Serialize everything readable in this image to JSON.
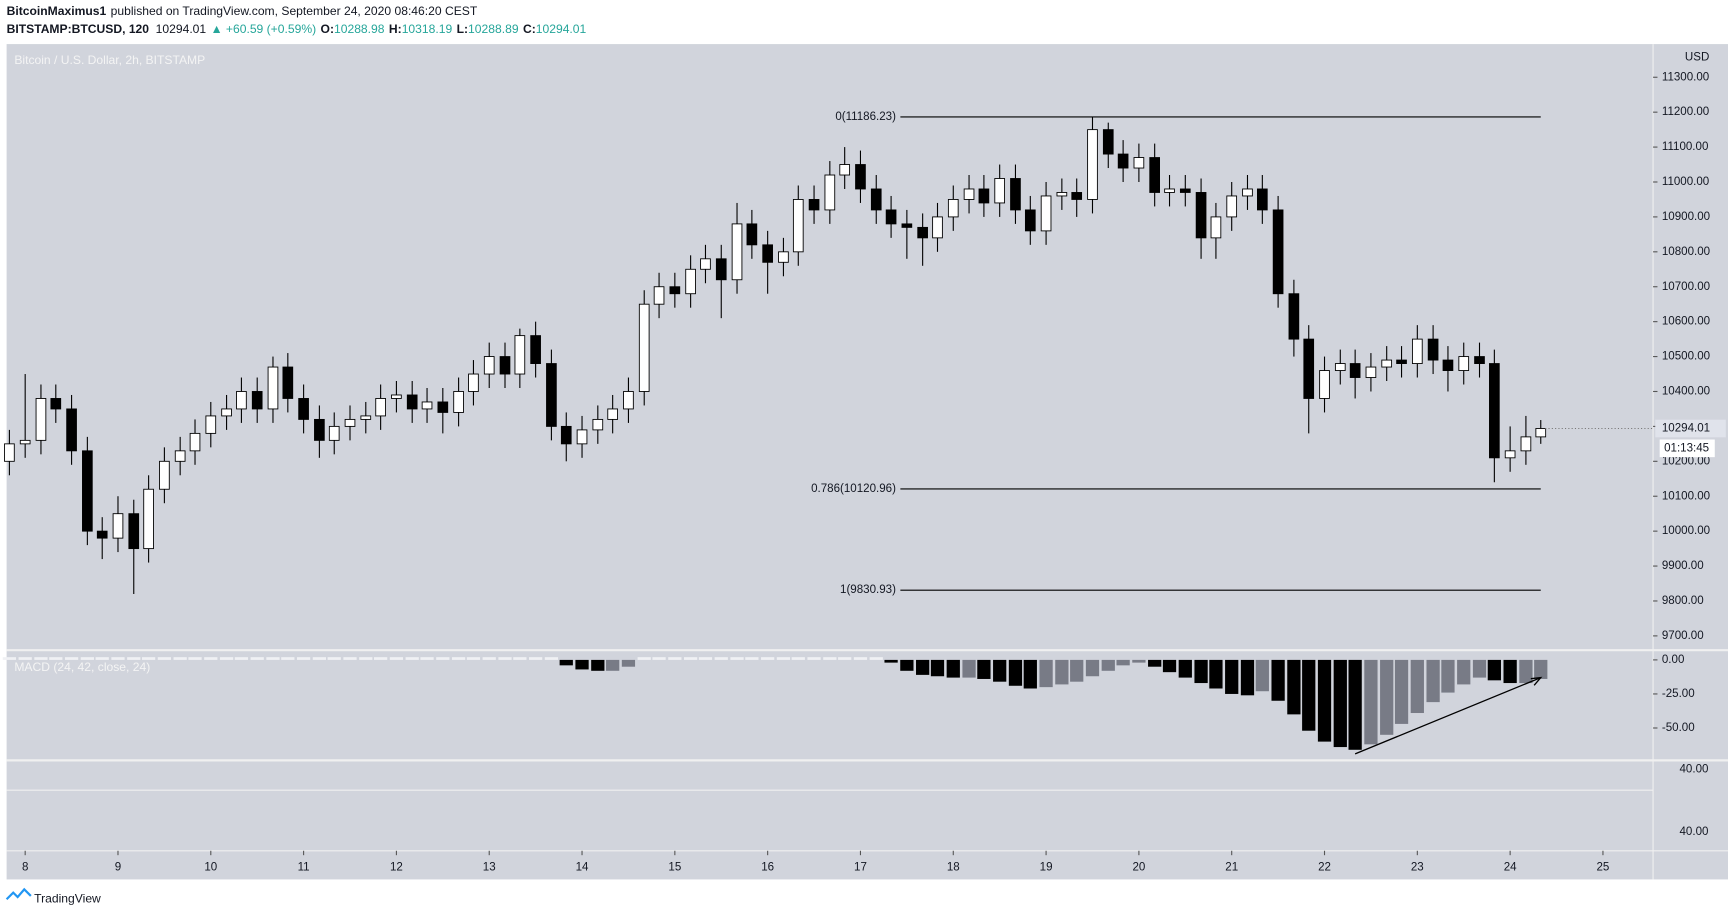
{
  "header": {
    "publisher": "BitcoinMaximus1",
    "published": "published on TradingView.com, September 24, 2020 08:46:20 CEST",
    "symbol": "BITSTAMP:BTCUSD, 120",
    "last": "10294.01",
    "change": "▲ +60.59 (+0.59%)",
    "o_label": "O:",
    "o": "10288.98",
    "h_label": "H:",
    "h": "10318.19",
    "l_label": "L:",
    "l": "10288.89",
    "c_label": "C:",
    "c": "10294.01"
  },
  "footer": {
    "brand": "TradingView"
  },
  "chart_data": {
    "type": "candlestick",
    "title": "Bitcoin / U.S. Dollar, 2h, BITSTAMP",
    "y_axis_label": "USD",
    "up_color": "#ffffff",
    "down_color": "#000000",
    "x": [
      7.83,
      8,
      8.17,
      8.33,
      8.5,
      8.67,
      8.83,
      9,
      9.17,
      9.33,
      9.5,
      9.67,
      9.83,
      10,
      10.17,
      10.33,
      10.5,
      10.67,
      10.83,
      11,
      11.17,
      11.33,
      11.5,
      11.67,
      11.83,
      12,
      12.17,
      12.33,
      12.5,
      12.67,
      12.83,
      13,
      13.17,
      13.33,
      13.5,
      13.67,
      13.83,
      14,
      14.17,
      14.33,
      14.5,
      14.67,
      14.83,
      15,
      15.17,
      15.33,
      15.5,
      15.67,
      15.83,
      16,
      16.17,
      16.33,
      16.5,
      16.67,
      16.83,
      17,
      17.17,
      17.33,
      17.5,
      17.67,
      17.83,
      18,
      18.17,
      18.33,
      18.5,
      18.67,
      18.83,
      19,
      19.17,
      19.33,
      19.5,
      19.67,
      19.83,
      20,
      20.17,
      20.33,
      20.5,
      20.67,
      20.83,
      21,
      21.17,
      21.33,
      21.5,
      21.67,
      21.83,
      22,
      22.17,
      22.33,
      22.5,
      22.67,
      22.83,
      23,
      23.17,
      23.33,
      23.5,
      23.67,
      23.83,
      24,
      24.17,
      24.33
    ],
    "open": [
      10200,
      10250,
      10260,
      10380,
      10350,
      10230,
      10000,
      9980,
      10050,
      9950,
      10120,
      10200,
      10230,
      10280,
      10330,
      10350,
      10400,
      10350,
      10470,
      10380,
      10320,
      10260,
      10300,
      10320,
      10330,
      10380,
      10390,
      10350,
      10370,
      10340,
      10400,
      10450,
      10500,
      10450,
      10560,
      10480,
      10300,
      10250,
      10290,
      10320,
      10350,
      10400,
      10650,
      10700,
      10680,
      10750,
      10780,
      10720,
      10880,
      10820,
      10770,
      10800,
      10950,
      10920,
      11020,
      11050,
      10980,
      10920,
      10880,
      10870,
      10840,
      10900,
      10950,
      10980,
      10940,
      11010,
      10920,
      10860,
      10960,
      10970,
      10950,
      11150,
      11080,
      11040,
      11070,
      10970,
      10980,
      10970,
      10840,
      10900,
      10960,
      10980,
      10920,
      10680,
      10550,
      10380,
      10460,
      10480,
      10440,
      10470,
      10490,
      10480,
      10550,
      10490,
      10460,
      10500,
      10480,
      10210,
      10230,
      10270
    ],
    "high": [
      10290,
      10450,
      10420,
      10420,
      10390,
      10270,
      10040,
      10100,
      10090,
      10160,
      10240,
      10270,
      10320,
      10370,
      10390,
      10440,
      10440,
      10500,
      10510,
      10420,
      10360,
      10340,
      10360,
      10370,
      10420,
      10430,
      10430,
      10410,
      10410,
      10440,
      10490,
      10540,
      10540,
      10580,
      10600,
      10520,
      10340,
      10330,
      10360,
      10390,
      10440,
      10690,
      10740,
      10740,
      10790,
      10820,
      10820,
      10940,
      10920,
      10860,
      10840,
      10990,
      10990,
      11060,
      11100,
      11090,
      11020,
      10960,
      10920,
      10910,
      10940,
      10990,
      11020,
      11020,
      11050,
      11050,
      10960,
      11000,
      11010,
      11010,
      11186.23,
      11170,
      11120,
      11110,
      11110,
      11020,
      11020,
      11010,
      10940,
      11000,
      11020,
      11020,
      10960,
      10720,
      10590,
      10500,
      10520,
      10520,
      10510,
      10530,
      10530,
      10590,
      10590,
      10530,
      10540,
      10540,
      10520,
      10300,
      10330,
      10318.19
    ],
    "low": [
      10160,
      10210,
      10220,
      10310,
      10190,
      9960,
      9920,
      9940,
      9820,
      9910,
      10080,
      10160,
      10190,
      10240,
      10290,
      10310,
      10310,
      10310,
      10340,
      10280,
      10210,
      10220,
      10260,
      10280,
      10290,
      10340,
      10310,
      10310,
      10280,
      10300,
      10360,
      10410,
      10410,
      10410,
      10440,
      10260,
      10200,
      10210,
      10250,
      10280,
      10310,
      10360,
      10610,
      10640,
      10640,
      10710,
      10610,
      10680,
      10780,
      10680,
      10730,
      10760,
      10880,
      10880,
      10980,
      10940,
      10880,
      10840,
      10780,
      10760,
      10800,
      10860,
      10910,
      10900,
      10900,
      10880,
      10820,
      10820,
      10920,
      10900,
      10910,
      11040,
      11000,
      11000,
      10930,
      10930,
      10930,
      10780,
      10780,
      10860,
      10920,
      10880,
      10640,
      10500,
      10280,
      10340,
      10420,
      10380,
      10400,
      10430,
      10440,
      10440,
      10450,
      10400,
      10420,
      10440,
      10140,
      10170,
      10190,
      10250
    ],
    "close": [
      10250,
      10260,
      10380,
      10350,
      10230,
      10000,
      9980,
      10050,
      9950,
      10120,
      10200,
      10230,
      10280,
      10330,
      10350,
      10400,
      10350,
      10470,
      10380,
      10320,
      10260,
      10300,
      10320,
      10330,
      10380,
      10390,
      10350,
      10370,
      10340,
      10400,
      10450,
      10500,
      10450,
      10560,
      10480,
      10300,
      10250,
      10290,
      10320,
      10350,
      10400,
      10650,
      10700,
      10680,
      10750,
      10780,
      10720,
      10880,
      10820,
      10770,
      10800,
      10950,
      10920,
      11020,
      11050,
      10980,
      10920,
      10880,
      10870,
      10840,
      10900,
      10950,
      10980,
      10940,
      11010,
      10920,
      10860,
      10960,
      10970,
      10950,
      11150,
      11080,
      11040,
      11070,
      10970,
      10980,
      10970,
      10840,
      10900,
      10960,
      10980,
      10920,
      10680,
      10550,
      10380,
      10460,
      10480,
      10440,
      10470,
      10490,
      10480,
      10550,
      10490,
      10460,
      10500,
      10480,
      10210,
      10230,
      10270,
      10294.01
    ],
    "xlim": [
      7.8,
      25.54
    ],
    "xticks": [
      8,
      9,
      10,
      11,
      12,
      13,
      14,
      15,
      16,
      17,
      18,
      19,
      20,
      21,
      22,
      23,
      24,
      25
    ],
    "ylim": [
      9659,
      11395
    ],
    "yticks": [
      {
        "value": 9700,
        "label": "9700.00"
      },
      {
        "value": 9800,
        "label": "9800.00"
      },
      {
        "value": 9900,
        "label": "9900.00"
      },
      {
        "value": 10000,
        "label": "10000.00"
      },
      {
        "value": 10100,
        "label": "10100.00"
      },
      {
        "value": 10200,
        "label": "10200.00"
      },
      {
        "value": 10300,
        "label": "10300.00"
      },
      {
        "value": 10400,
        "label": "10400.00"
      },
      {
        "value": 10500,
        "label": "10500.00"
      },
      {
        "value": 10600,
        "label": "10600.00"
      },
      {
        "value": 10700,
        "label": "10700.00"
      },
      {
        "value": 10800,
        "label": "10800.00"
      },
      {
        "value": 10900,
        "label": "10900.00"
      },
      {
        "value": 11000,
        "label": "11000.00"
      },
      {
        "value": 11100,
        "label": "11100.00"
      },
      {
        "value": 11200,
        "label": "11200.00"
      },
      {
        "value": 11300,
        "label": "11300.00"
      }
    ],
    "last_price_label": "10294.01",
    "countdown": "01:13:45",
    "fib_range": [
      17.43,
      24.33
    ],
    "fib_levels": [
      {
        "value": 11186.23,
        "label": "0(11186.23)"
      },
      {
        "value": 10120.96,
        "label": "0.786(10120.96)"
      },
      {
        "value": 9830.93,
        "label": "1(9830.93)"
      }
    ],
    "macd": {
      "title": "MACD (24, 42, close, 24)",
      "colors": {
        "positive": "#f0f1f4",
        "falling": "#000000",
        "rising": "#787b86"
      },
      "values": [
        2,
        2,
        2,
        2,
        2,
        2,
        2,
        2,
        2,
        2,
        2,
        2,
        2,
        2,
        2,
        2,
        2,
        2,
        2,
        2,
        2,
        2,
        2,
        2,
        2,
        2,
        2,
        2,
        2,
        2,
        2,
        2,
        2,
        2,
        2,
        2,
        -4,
        -7,
        -8,
        -8,
        -5,
        2,
        2,
        2,
        2,
        2,
        2,
        2,
        2,
        2,
        2,
        2,
        2,
        2,
        2,
        2,
        2,
        -2,
        -8,
        -11,
        -12,
        -13,
        -13,
        -14,
        -16,
        -19,
        -21,
        -20,
        -18,
        -16,
        -12,
        -8,
        -4,
        -2,
        -5,
        -9,
        -13,
        -17,
        -21,
        -25,
        -26,
        -23,
        -30,
        -40,
        -52,
        -60,
        -64,
        -66,
        -62,
        -55,
        -47,
        -39,
        -31,
        -24,
        -18,
        -13,
        -15,
        -17,
        -17,
        -14
      ],
      "ylim": [
        -73.8,
        5.5
      ],
      "yticks": [
        {
          "value": 0,
          "label": "0.00"
        },
        {
          "value": -25,
          "label": "-25.00"
        },
        {
          "value": -50,
          "label": "-50.00"
        }
      ],
      "trendline": {
        "x": [
          22.33,
          24.33
        ],
        "y": [
          -69,
          -13
        ]
      }
    },
    "extra_pane": {
      "labels": [
        "40.00",
        "40.00"
      ]
    }
  }
}
